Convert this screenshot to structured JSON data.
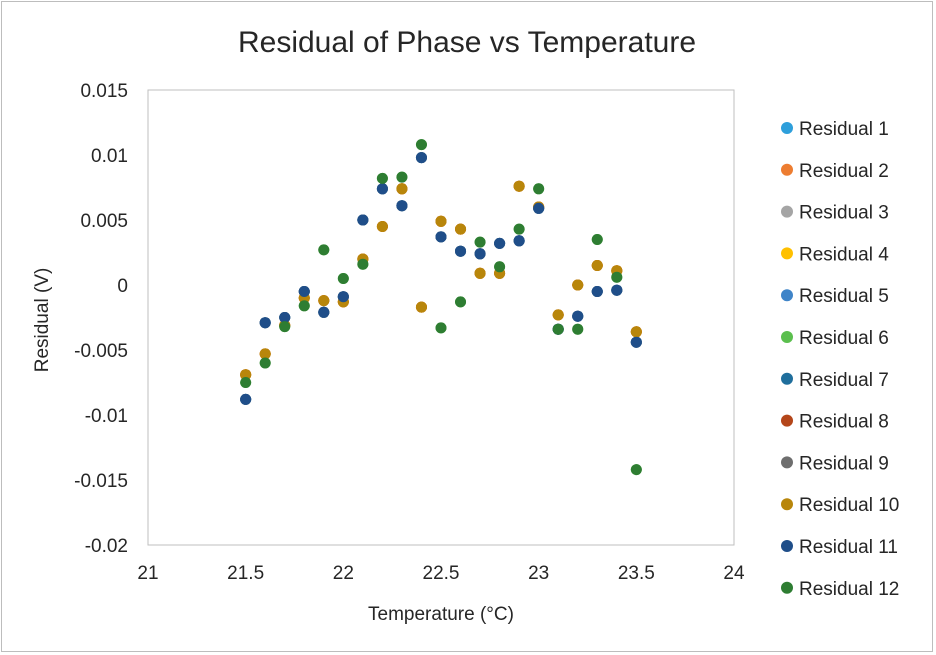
{
  "chart_data": {
    "type": "scatter",
    "title": "Residual of Phase vs Temperature",
    "xlabel": "Temperature (°C)",
    "ylabel": "Residual (V)",
    "xlim": [
      21,
      24
    ],
    "ylim": [
      -0.02,
      0.015
    ],
    "xticks": [
      "21",
      "21.5",
      "22",
      "22.5",
      "23",
      "23.5",
      "24"
    ],
    "yticks": [
      "0.015",
      "0.01",
      "0.005",
      "0",
      "-0.005",
      "-0.01",
      "-0.015",
      "-0.02"
    ],
    "grid": false,
    "legend_position": "right",
    "series": [
      {
        "name": "Residual 1",
        "color": "#2E9FDB",
        "points": [
          [
            21.5,
            -0.0088
          ],
          [
            21.6,
            -0.0029
          ],
          [
            21.7,
            -0.0025
          ],
          [
            21.8,
            -0.0005
          ],
          [
            21.9,
            -0.0021
          ],
          [
            22.0,
            -0.0009
          ],
          [
            22.1,
            0.005
          ],
          [
            22.2,
            0.0074
          ],
          [
            22.3,
            0.0061
          ],
          [
            22.4,
            0.0098
          ],
          [
            22.5,
            0.0037
          ],
          [
            22.6,
            0.0026
          ],
          [
            22.7,
            0.0024
          ],
          [
            22.8,
            0.0032
          ],
          [
            22.9,
            0.0034
          ],
          [
            23.0,
            0.0059
          ],
          [
            23.1,
            -0.0034
          ],
          [
            23.2,
            -0.0024
          ],
          [
            23.3,
            -0.0005
          ],
          [
            23.4,
            -0.0004
          ],
          [
            23.5,
            -0.0044
          ]
        ]
      },
      {
        "name": "Residual 2",
        "color": "#ED7D31",
        "points": [
          [
            21.5,
            -0.0069
          ],
          [
            21.6,
            -0.0053
          ],
          [
            21.7,
            -0.0031
          ],
          [
            21.8,
            -0.001
          ],
          [
            21.9,
            -0.0012
          ],
          [
            22.0,
            -0.0013
          ],
          [
            22.1,
            0.002
          ],
          [
            22.2,
            0.0045
          ],
          [
            22.3,
            0.0074
          ],
          [
            22.4,
            -0.0017
          ],
          [
            22.5,
            0.0049
          ],
          [
            22.6,
            0.0043
          ],
          [
            22.7,
            0.0009
          ],
          [
            22.8,
            0.0009
          ],
          [
            22.9,
            0.0076
          ],
          [
            23.0,
            0.006
          ],
          [
            23.1,
            -0.0023
          ],
          [
            23.2,
            0.0
          ],
          [
            23.3,
            0.0015
          ],
          [
            23.4,
            0.0011
          ],
          [
            23.5,
            -0.0036
          ]
        ]
      },
      {
        "name": "Residual 3",
        "color": "#A5A5A5",
        "points": [
          [
            21.5,
            -0.0088
          ],
          [
            21.6,
            -0.0029
          ],
          [
            21.7,
            -0.0025
          ],
          [
            21.8,
            -0.0005
          ],
          [
            21.9,
            -0.0021
          ],
          [
            22.0,
            -0.0009
          ],
          [
            22.1,
            0.005
          ],
          [
            22.2,
            0.0074
          ],
          [
            22.3,
            0.0061
          ],
          [
            22.4,
            0.0098
          ],
          [
            22.5,
            0.0037
          ],
          [
            22.6,
            0.0026
          ],
          [
            22.7,
            0.0024
          ],
          [
            22.8,
            0.0032
          ],
          [
            22.9,
            0.0034
          ],
          [
            23.0,
            0.0059
          ],
          [
            23.1,
            -0.0034
          ],
          [
            23.2,
            -0.0024
          ],
          [
            23.3,
            -0.0005
          ],
          [
            23.4,
            -0.0004
          ],
          [
            23.5,
            -0.0044
          ]
        ]
      },
      {
        "name": "Residual 4",
        "color": "#FFC000",
        "points": [
          [
            21.5,
            -0.0069
          ],
          [
            21.6,
            -0.0053
          ],
          [
            21.7,
            -0.0031
          ],
          [
            21.8,
            -0.001
          ],
          [
            21.9,
            -0.0012
          ],
          [
            22.0,
            -0.0013
          ],
          [
            22.1,
            0.002
          ],
          [
            22.2,
            0.0045
          ],
          [
            22.3,
            0.0074
          ],
          [
            22.4,
            -0.0017
          ],
          [
            22.5,
            0.0049
          ],
          [
            22.6,
            0.0043
          ],
          [
            22.7,
            0.0009
          ],
          [
            22.8,
            0.0009
          ],
          [
            22.9,
            0.0076
          ],
          [
            23.0,
            0.006
          ],
          [
            23.1,
            -0.0023
          ],
          [
            23.2,
            0.0
          ],
          [
            23.3,
            0.0015
          ],
          [
            23.4,
            0.0011
          ],
          [
            23.5,
            -0.0036
          ]
        ]
      },
      {
        "name": "Residual 5",
        "color": "#3F84C8",
        "points": [
          [
            21.5,
            -0.0088
          ],
          [
            21.6,
            -0.0029
          ],
          [
            21.7,
            -0.0025
          ],
          [
            21.8,
            -0.0005
          ],
          [
            21.9,
            -0.0021
          ],
          [
            22.0,
            -0.0009
          ],
          [
            22.1,
            0.005
          ],
          [
            22.2,
            0.0074
          ],
          [
            22.3,
            0.0061
          ],
          [
            22.4,
            0.0098
          ],
          [
            22.5,
            0.0037
          ],
          [
            22.6,
            0.0026
          ],
          [
            22.7,
            0.0024
          ],
          [
            22.8,
            0.0032
          ],
          [
            22.9,
            0.0034
          ],
          [
            23.0,
            0.0059
          ],
          [
            23.1,
            -0.0034
          ],
          [
            23.2,
            -0.0024
          ],
          [
            23.3,
            -0.0005
          ],
          [
            23.4,
            -0.0004
          ],
          [
            23.5,
            -0.0044
          ]
        ]
      },
      {
        "name": "Residual 6",
        "color": "#5BBF4E",
        "points": [
          [
            21.5,
            -0.0075
          ],
          [
            21.6,
            -0.006
          ],
          [
            21.7,
            -0.0032
          ],
          [
            21.8,
            -0.0016
          ],
          [
            21.9,
            0.0027
          ],
          [
            22.0,
            0.0005
          ],
          [
            22.1,
            0.0016
          ],
          [
            22.2,
            0.0082
          ],
          [
            22.3,
            0.0083
          ],
          [
            22.4,
            0.0108
          ],
          [
            22.5,
            -0.0033
          ],
          [
            22.6,
            -0.0013
          ],
          [
            22.7,
            0.0033
          ],
          [
            22.8,
            0.0014
          ],
          [
            22.9,
            0.0043
          ],
          [
            23.0,
            0.0074
          ],
          [
            23.1,
            -0.0034
          ],
          [
            23.2,
            -0.0034
          ],
          [
            23.3,
            0.0035
          ],
          [
            23.4,
            0.0006
          ],
          [
            23.5,
            -0.0142
          ]
        ]
      },
      {
        "name": "Residual 7",
        "color": "#1F6E9C",
        "points": [
          [
            21.5,
            -0.0088
          ],
          [
            21.6,
            -0.0029
          ],
          [
            21.7,
            -0.0025
          ],
          [
            21.8,
            -0.0005
          ],
          [
            21.9,
            -0.0021
          ],
          [
            22.0,
            -0.0009
          ],
          [
            22.1,
            0.005
          ],
          [
            22.2,
            0.0074
          ],
          [
            22.3,
            0.0061
          ],
          [
            22.4,
            0.0098
          ],
          [
            22.5,
            0.0037
          ],
          [
            22.6,
            0.0026
          ],
          [
            22.7,
            0.0024
          ],
          [
            22.8,
            0.0032
          ],
          [
            22.9,
            0.0034
          ],
          [
            23.0,
            0.0059
          ],
          [
            23.1,
            -0.0034
          ],
          [
            23.2,
            -0.0024
          ],
          [
            23.3,
            -0.0005
          ],
          [
            23.4,
            -0.0004
          ],
          [
            23.5,
            -0.0044
          ]
        ]
      },
      {
        "name": "Residual 8",
        "color": "#B4461A",
        "points": [
          [
            21.5,
            -0.0069
          ],
          [
            21.6,
            -0.0053
          ],
          [
            21.7,
            -0.0031
          ],
          [
            21.8,
            -0.001
          ],
          [
            21.9,
            -0.0012
          ],
          [
            22.0,
            -0.0013
          ],
          [
            22.1,
            0.002
          ],
          [
            22.2,
            0.0045
          ],
          [
            22.3,
            0.0074
          ],
          [
            22.4,
            -0.0017
          ],
          [
            22.5,
            0.0049
          ],
          [
            22.6,
            0.0043
          ],
          [
            22.7,
            0.0009
          ],
          [
            22.8,
            0.0009
          ],
          [
            22.9,
            0.0076
          ],
          [
            23.0,
            0.006
          ],
          [
            23.1,
            -0.0023
          ],
          [
            23.2,
            0.0
          ],
          [
            23.3,
            0.0015
          ],
          [
            23.4,
            0.0011
          ],
          [
            23.5,
            -0.0036
          ]
        ]
      },
      {
        "name": "Residual 9",
        "color": "#6E6E6E",
        "points": [
          [
            21.5,
            -0.0088
          ],
          [
            21.6,
            -0.0029
          ],
          [
            21.7,
            -0.0025
          ],
          [
            21.8,
            -0.0005
          ],
          [
            21.9,
            -0.0021
          ],
          [
            22.0,
            -0.0009
          ],
          [
            22.1,
            0.005
          ],
          [
            22.2,
            0.0074
          ],
          [
            22.3,
            0.0061
          ],
          [
            22.4,
            0.0098
          ],
          [
            22.5,
            0.0037
          ],
          [
            22.6,
            0.0026
          ],
          [
            22.7,
            0.0024
          ],
          [
            22.8,
            0.0032
          ],
          [
            22.9,
            0.0034
          ],
          [
            23.0,
            0.0059
          ],
          [
            23.1,
            -0.0034
          ],
          [
            23.2,
            -0.0024
          ],
          [
            23.3,
            -0.0005
          ],
          [
            23.4,
            -0.0004
          ],
          [
            23.5,
            -0.0044
          ]
        ]
      },
      {
        "name": "Residual 10",
        "color": "#B8860B",
        "points": [
          [
            21.5,
            -0.0069
          ],
          [
            21.6,
            -0.0053
          ],
          [
            21.7,
            -0.0031
          ],
          [
            21.8,
            -0.001
          ],
          [
            21.9,
            -0.0012
          ],
          [
            22.0,
            -0.0013
          ],
          [
            22.1,
            0.002
          ],
          [
            22.2,
            0.0045
          ],
          [
            22.3,
            0.0074
          ],
          [
            22.4,
            -0.0017
          ],
          [
            22.5,
            0.0049
          ],
          [
            22.6,
            0.0043
          ],
          [
            22.7,
            0.0009
          ],
          [
            22.8,
            0.0009
          ],
          [
            22.9,
            0.0076
          ],
          [
            23.0,
            0.006
          ],
          [
            23.1,
            -0.0023
          ],
          [
            23.2,
            0.0
          ],
          [
            23.3,
            0.0015
          ],
          [
            23.4,
            0.0011
          ],
          [
            23.5,
            -0.0036
          ]
        ]
      },
      {
        "name": "Residual 11",
        "color": "#1F4E89",
        "points": [
          [
            21.5,
            -0.0088
          ],
          [
            21.6,
            -0.0029
          ],
          [
            21.7,
            -0.0025
          ],
          [
            21.8,
            -0.0005
          ],
          [
            21.9,
            -0.0021
          ],
          [
            22.0,
            -0.0009
          ],
          [
            22.1,
            0.005
          ],
          [
            22.2,
            0.0074
          ],
          [
            22.3,
            0.0061
          ],
          [
            22.4,
            0.0098
          ],
          [
            22.5,
            0.0037
          ],
          [
            22.6,
            0.0026
          ],
          [
            22.7,
            0.0024
          ],
          [
            22.8,
            0.0032
          ],
          [
            22.9,
            0.0034
          ],
          [
            23.0,
            0.0059
          ],
          [
            23.1,
            -0.0034
          ],
          [
            23.2,
            -0.0024
          ],
          [
            23.3,
            -0.0005
          ],
          [
            23.4,
            -0.0004
          ],
          [
            23.5,
            -0.0044
          ]
        ]
      },
      {
        "name": "Residual 12",
        "color": "#2E7D32",
        "points": [
          [
            21.5,
            -0.0075
          ],
          [
            21.6,
            -0.006
          ],
          [
            21.7,
            -0.0032
          ],
          [
            21.8,
            -0.0016
          ],
          [
            21.9,
            0.0027
          ],
          [
            22.0,
            0.0005
          ],
          [
            22.1,
            0.0016
          ],
          [
            22.2,
            0.0082
          ],
          [
            22.3,
            0.0083
          ],
          [
            22.4,
            0.0108
          ],
          [
            22.5,
            -0.0033
          ],
          [
            22.6,
            -0.0013
          ],
          [
            22.7,
            0.0033
          ],
          [
            22.8,
            0.0014
          ],
          [
            22.9,
            0.0043
          ],
          [
            23.0,
            0.0074
          ],
          [
            23.1,
            -0.0034
          ],
          [
            23.2,
            -0.0034
          ],
          [
            23.3,
            0.0035
          ],
          [
            23.4,
            0.0006
          ],
          [
            23.5,
            -0.0142
          ]
        ]
      }
    ]
  }
}
